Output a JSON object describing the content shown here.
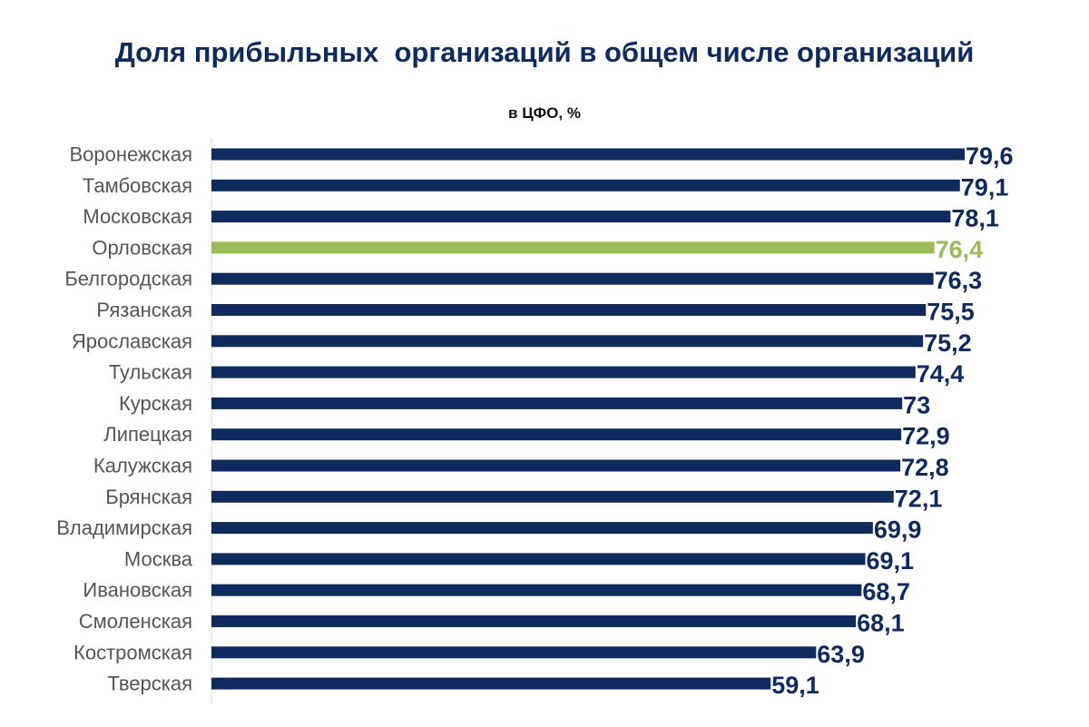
{
  "chart_data": {
    "type": "bar",
    "orientation": "horizontal",
    "title": "Доля прибыльных  организаций в общем числе организаций",
    "subtitle": "в ЦФО, %",
    "categories": [
      "Воронежская",
      "Тамбовская",
      "Московская",
      "Орловская",
      "Белгородская",
      "Рязанская",
      "Ярославская",
      "Тульская",
      "Курская",
      "Липецкая",
      "Калужская",
      "Брянская",
      "Владимирская",
      "Москва",
      "Ивановская",
      "Смоленская",
      "Костромская",
      "Тверская"
    ],
    "values": [
      79.6,
      79.1,
      78.1,
      76.4,
      76.3,
      75.5,
      75.2,
      74.4,
      73,
      72.9,
      72.8,
      72.1,
      69.9,
      69.1,
      68.7,
      68.1,
      63.9,
      59.1
    ],
    "value_labels": [
      "79,6",
      "79,1",
      "78,1",
      "76,4",
      "76,3",
      "75,5",
      "75,2",
      "74,4",
      "73",
      "72,9",
      "72,8",
      "72,1",
      "69,9",
      "69,1",
      "68,7",
      "68,1",
      "63,9",
      "59,1"
    ],
    "highlight_category": "Орловская",
    "xlim": [
      0,
      79.6
    ],
    "grid": false,
    "legend": "none",
    "colors": {
      "bar": "#0f2a5c",
      "highlight": "#9bbb59",
      "label": "#555555",
      "axis": "#d9d9d9"
    }
  }
}
